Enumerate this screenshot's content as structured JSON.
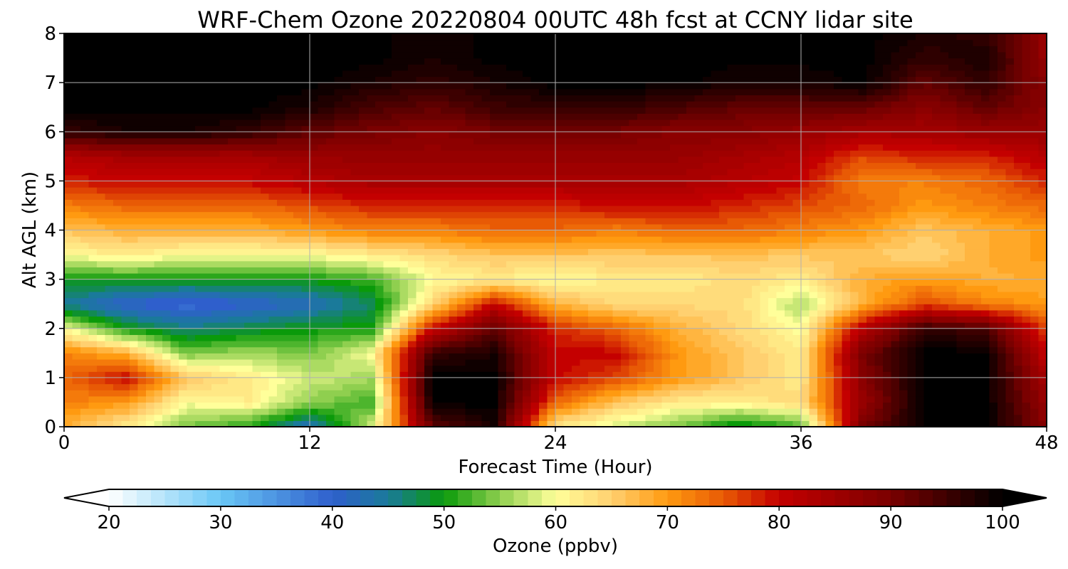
{
  "chart_data": {
    "type": "heatmap",
    "title": "WRF-Chem Ozone  20220804 00UTC 48h fcst at CCNY lidar site",
    "xlabel": "Forecast Time (Hour)",
    "ylabel": "Alt AGL (km)",
    "xlim": [
      0,
      48
    ],
    "ylim": [
      0,
      8
    ],
    "x_ticks": [
      "0",
      "12",
      "24",
      "36",
      "48"
    ],
    "y_ticks": [
      "0",
      "1",
      "2",
      "3",
      "4",
      "5",
      "6",
      "7",
      "8"
    ],
    "grid": true,
    "colorbar": {
      "label": "Ozone  (ppbv)",
      "min": 20,
      "max": 100,
      "ticks": [
        "20",
        "30",
        "40",
        "50",
        "60",
        "70",
        "80",
        "90",
        "100"
      ],
      "extend": "both",
      "stops": [
        {
          "value": 20,
          "color": "#ffffff"
        },
        {
          "value": 30,
          "color": "#6ac8f6"
        },
        {
          "value": 40,
          "color": "#2f5fcc"
        },
        {
          "value": 45,
          "color": "#1a7a9a"
        },
        {
          "value": 50,
          "color": "#0a9a0a"
        },
        {
          "value": 55,
          "color": "#8fcf4f"
        },
        {
          "value": 60,
          "color": "#ffff9a"
        },
        {
          "value": 65,
          "color": "#ffd070"
        },
        {
          "value": 70,
          "color": "#ff9a10"
        },
        {
          "value": 75,
          "color": "#e85a05"
        },
        {
          "value": 80,
          "color": "#c40000"
        },
        {
          "value": 90,
          "color": "#7a0000"
        },
        {
          "value": 100,
          "color": "#000000"
        }
      ]
    },
    "x_hours": [
      0,
      3,
      6,
      9,
      12,
      15,
      18,
      21,
      24,
      27,
      30,
      33,
      36,
      39,
      42,
      45,
      48
    ],
    "y_km": [
      0,
      0.5,
      1,
      1.5,
      2,
      2.5,
      3,
      3.5,
      4,
      4.5,
      5,
      5.5,
      6,
      6.5,
      7,
      7.5,
      8
    ],
    "ozone_ppbv": [
      [
        68,
        62,
        54,
        51,
        42,
        58,
        92,
        98,
        62,
        58,
        54,
        48,
        52,
        90,
        100,
        100,
        88
      ],
      [
        72,
        70,
        60,
        62,
        55,
        52,
        100,
        100,
        74,
        66,
        62,
        62,
        64,
        86,
        100,
        100,
        86
      ],
      [
        74,
        80,
        66,
        62,
        58,
        56,
        100,
        100,
        80,
        76,
        70,
        66,
        62,
        88,
        100,
        100,
        84
      ],
      [
        72,
        68,
        54,
        56,
        54,
        60,
        96,
        98,
        80,
        80,
        70,
        66,
        62,
        90,
        100,
        100,
        80
      ],
      [
        60,
        50,
        46,
        48,
        50,
        50,
        80,
        92,
        78,
        74,
        68,
        64,
        60,
        82,
        96,
        94,
        76
      ],
      [
        45,
        40,
        38,
        40,
        42,
        47,
        64,
        80,
        68,
        64,
        64,
        64,
        56,
        68,
        76,
        72,
        70
      ],
      [
        50,
        50,
        50,
        50,
        50,
        52,
        60,
        62,
        60,
        62,
        62,
        64,
        62,
        68,
        70,
        68,
        68
      ],
      [
        60,
        62,
        60,
        60,
        60,
        62,
        64,
        66,
        66,
        66,
        66,
        66,
        66,
        66,
        64,
        68,
        70
      ],
      [
        66,
        68,
        68,
        68,
        70,
        72,
        72,
        74,
        74,
        72,
        74,
        74,
        72,
        70,
        66,
        68,
        70
      ],
      [
        72,
        74,
        74,
        74,
        76,
        78,
        78,
        78,
        78,
        80,
        80,
        78,
        76,
        74,
        70,
        72,
        74
      ],
      [
        78,
        80,
        80,
        80,
        82,
        84,
        84,
        84,
        84,
        84,
        84,
        82,
        80,
        72,
        72,
        74,
        78
      ],
      [
        82,
        84,
        84,
        84,
        86,
        86,
        86,
        86,
        86,
        86,
        86,
        84,
        82,
        76,
        78,
        78,
        82
      ],
      [
        96,
        98,
        98,
        96,
        92,
        90,
        88,
        90,
        90,
        90,
        88,
        88,
        86,
        84,
        84,
        86,
        86
      ],
      [
        100,
        100,
        100,
        100,
        98,
        94,
        92,
        95,
        96,
        96,
        94,
        92,
        92,
        92,
        88,
        92,
        88
      ],
      [
        100,
        100,
        100,
        100,
        100,
        98,
        96,
        98,
        100,
        100,
        100,
        98,
        98,
        100,
        92,
        96,
        88
      ],
      [
        100,
        100,
        100,
        100,
        100,
        100,
        98,
        100,
        100,
        100,
        100,
        100,
        100,
        100,
        96,
        98,
        86
      ],
      [
        100,
        100,
        100,
        100,
        100,
        100,
        98,
        100,
        100,
        100,
        100,
        100,
        100,
        100,
        98,
        96,
        86
      ]
    ]
  }
}
